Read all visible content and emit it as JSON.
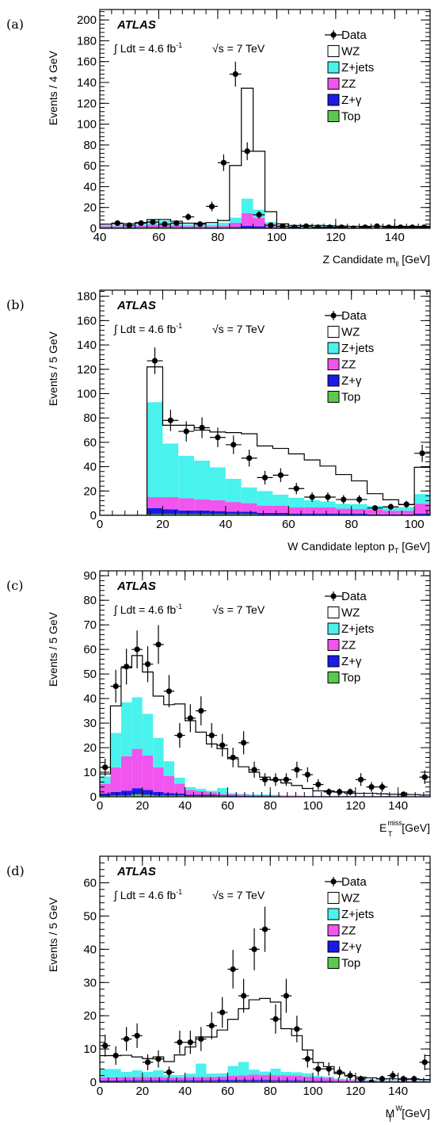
{
  "colors": {
    "wz": "#ffffff",
    "zjets": "#4af2ee",
    "zz": "#f055ee",
    "zgamma": "#1a1ae6",
    "top": "#5dc850",
    "data": "#000000"
  },
  "common": {
    "atlas": "ATLAS",
    "lumi": "∫ Ldt = 4.6 fb",
    "lumi_sup": "-1",
    "sqrts": "√s = 7 TeV",
    "legend": [
      "Data",
      "WZ",
      "Z+jets",
      "ZZ",
      "Z+γ",
      "Top"
    ]
  },
  "chart_data": [
    {
      "panel": "(a)",
      "type": "bar",
      "ylabel": "Events / 4 GeV",
      "xlabel_main": "Z Candidate m",
      "xlabel_sub": "ll",
      "xlabel_unit": " [GeV]",
      "xlim": [
        40,
        152
      ],
      "ylim": [
        0,
        210
      ],
      "xticks": [
        40,
        60,
        80,
        100,
        120,
        140
      ],
      "yticks": [
        0,
        20,
        40,
        60,
        80,
        100,
        120,
        140,
        160,
        180,
        200
      ],
      "bin_edges": [
        40,
        44,
        48,
        52,
        56,
        60,
        64,
        68,
        72,
        76,
        80,
        84,
        88,
        92,
        96,
        100,
        104,
        108,
        112,
        116,
        120,
        124,
        128,
        132,
        136,
        140,
        144,
        148,
        152
      ],
      "stack": {
        "top": [
          0.5,
          0.5,
          0.5,
          0.8,
          1,
          1,
          0.8,
          0.5,
          0.5,
          0.5,
          0.5,
          0.5,
          0.5,
          0.5,
          0.5,
          0.5,
          0.5,
          0.5,
          0.5,
          0.5,
          0.3,
          0.3,
          0.3,
          0.3,
          0.3,
          0.3,
          0.3,
          0.3
        ],
        "zgamma": [
          0.5,
          0.5,
          0.5,
          0.5,
          0.5,
          0.5,
          0.5,
          0.5,
          0.5,
          0.5,
          0.5,
          0.8,
          2,
          1.5,
          0.5,
          0.3,
          0.3,
          0.3,
          0.3,
          0.3,
          0.3,
          0.3,
          0.3,
          0.3,
          0.3,
          0.3,
          0.3,
          0.3
        ],
        "zz": [
          1,
          1,
          1,
          1.2,
          2,
          2,
          1.5,
          1,
          1,
          1,
          1.5,
          4,
          12,
          8,
          2,
          1,
          0.5,
          0.5,
          0.5,
          0.5,
          0.3,
          0.3,
          0.3,
          0.3,
          0.3,
          0.3,
          0.3,
          0.3
        ],
        "zjets": [
          1,
          1.5,
          1.5,
          2,
          4,
          4,
          3,
          2,
          2,
          2,
          3,
          5,
          14,
          8,
          3,
          1.5,
          1,
          1,
          1,
          0.7,
          0.7,
          0.5,
          0.5,
          0.5,
          0.5,
          0.5,
          0.5,
          0.5
        ],
        "wz": [
          1,
          1,
          1,
          1,
          1,
          1,
          1,
          1,
          1,
          1.5,
          2,
          50,
          106,
          56,
          10,
          1,
          0.5,
          0.5,
          0.5,
          0.5,
          0.5,
          0.5,
          0.5,
          0.5,
          0.5,
          0.5,
          0.5,
          0.5
        ]
      },
      "data": {
        "x": [
          46,
          50,
          54,
          58,
          62,
          66,
          70,
          74,
          78,
          82,
          86,
          90,
          94,
          98,
          102,
          106,
          110,
          114,
          118,
          122,
          126,
          130,
          134,
          138,
          142,
          146,
          150
        ],
        "y": [
          5,
          3,
          5,
          6,
          4,
          5,
          11,
          4,
          21,
          63,
          148,
          74,
          13,
          3,
          2,
          1,
          2,
          1,
          1,
          1,
          0,
          1,
          2,
          1,
          1,
          1,
          1
        ],
        "err": [
          2.2,
          1.7,
          2.2,
          2.4,
          2,
          2.2,
          3.3,
          2,
          4.6,
          8,
          12,
          8.6,
          3.6,
          1.7,
          1.4,
          1,
          1.4,
          1,
          1,
          1,
          0,
          1,
          1.4,
          1,
          1,
          1,
          1
        ]
      }
    },
    {
      "panel": "(b)",
      "type": "bar",
      "ylabel": "Events / 5 GeV",
      "xlabel_main": "W Candidate lepton p",
      "xlabel_sub": "T",
      "xlabel_unit": " [GeV]",
      "xlim": [
        0,
        105
      ],
      "ylim": [
        0,
        185
      ],
      "xticks": [
        0,
        20,
        40,
        60,
        80,
        100
      ],
      "yticks": [
        0,
        20,
        40,
        60,
        80,
        100,
        120,
        140,
        160,
        180
      ],
      "bin_edges": [
        0,
        5,
        10,
        15,
        20,
        25,
        30,
        35,
        40,
        45,
        50,
        55,
        60,
        65,
        70,
        75,
        80,
        85,
        90,
        95,
        100,
        105
      ],
      "stack": {
        "top": [
          0,
          0,
          0,
          1,
          1,
          1,
          1,
          1,
          1,
          1,
          0.5,
          0.5,
          0.5,
          0.5,
          0.5,
          0.5,
          0.5,
          0.3,
          0.3,
          0.3,
          0.5
        ],
        "zgamma": [
          0,
          0,
          0,
          5,
          4,
          3,
          3,
          2.5,
          2,
          2,
          1.5,
          1.5,
          1,
          1,
          1,
          1,
          0.8,
          0.5,
          0.5,
          0.5,
          1
        ],
        "zz": [
          0,
          0,
          0,
          9,
          10,
          10,
          9,
          9,
          8,
          7,
          6,
          6,
          5,
          5,
          5,
          4,
          4,
          4,
          3,
          3,
          8
        ],
        "zjets": [
          0,
          0,
          0,
          78,
          44,
          35,
          32,
          27,
          19,
          13,
          12,
          9,
          8,
          6,
          5,
          4,
          4,
          3,
          3,
          3,
          8
        ],
        "wz": [
          0,
          0,
          0,
          29,
          15,
          25,
          25,
          29,
          38,
          44,
          37,
          38,
          36,
          33,
          29,
          24,
          19,
          10,
          6,
          2,
          22
        ]
      },
      "data": {
        "x": [
          17.5,
          22.5,
          27.5,
          32.5,
          37.5,
          42.5,
          47.5,
          52.5,
          57.5,
          62.5,
          67.5,
          72.5,
          77.5,
          82.5,
          87.5,
          92.5,
          97.5,
          102.5
        ],
        "y": [
          127,
          78,
          69,
          72,
          64,
          58,
          47,
          31,
          33,
          22,
          15,
          15,
          13,
          13,
          6,
          7,
          9,
          51
        ],
        "err": [
          11,
          8.8,
          8.3,
          8.5,
          8,
          7.6,
          6.9,
          5.6,
          5.7,
          4.7,
          3.9,
          3.9,
          3.6,
          3.6,
          2.4,
          2.6,
          3,
          7.1
        ]
      }
    },
    {
      "panel": "(c)",
      "type": "bar",
      "ylabel": "Events / 5 GeV",
      "xlabel_main": "E",
      "xlabel_sub": "T",
      "xlabel_sup": "miss",
      "xlabel_unit": " [GeV]",
      "xlim": [
        0,
        155
      ],
      "ylim": [
        0,
        92
      ],
      "xticks": [
        0,
        20,
        40,
        60,
        80,
        100,
        120,
        140
      ],
      "yticks": [
        0,
        10,
        20,
        30,
        40,
        50,
        60,
        70,
        80,
        90
      ],
      "bin_edges": [
        0,
        5,
        10,
        15,
        20,
        25,
        30,
        35,
        40,
        45,
        50,
        55,
        60,
        65,
        70,
        75,
        80,
        85,
        90,
        95,
        100,
        105,
        110,
        115,
        120,
        125,
        130,
        135,
        140,
        145,
        150,
        155
      ],
      "stack": {
        "top": [
          0.3,
          0.5,
          0.5,
          1,
          0.8,
          0.5,
          0.5,
          0.5,
          0.3,
          0.3,
          0.3,
          0.3,
          0.2,
          0.2,
          0.2,
          0.2,
          0.2,
          0.1,
          0.1,
          0.1,
          0.1,
          0.1,
          0.1,
          0.1,
          0.1,
          0.1,
          0.1,
          0.1,
          0.1,
          0.1,
          0.1
        ],
        "zgamma": [
          1,
          1.5,
          2,
          2.5,
          2,
          1.5,
          1,
          0.8,
          0.5,
          0.5,
          0.5,
          0.3,
          0.3,
          0.2,
          0.2,
          0.2,
          0.1,
          0.1,
          0.1,
          0.1,
          0.1,
          0.1,
          0.1,
          0.1,
          0.1,
          0.1,
          0.1,
          0.1,
          0.1,
          0.1,
          0.1
        ],
        "zz": [
          4,
          10,
          14,
          16,
          14,
          10,
          7,
          4,
          2,
          1.5,
          1,
          0.5,
          0.5,
          0.5,
          0.3,
          0.3,
          0.2,
          0.2,
          0.2,
          0.1,
          0.1,
          0.1,
          0.1,
          0.1,
          0.1,
          0.1,
          0.1,
          0.1,
          0.1,
          0.1,
          0.1
        ],
        "zjets": [
          3,
          14,
          22,
          21,
          17,
          12,
          6,
          2.5,
          1.2,
          1,
          0.7,
          2.5,
          0.5,
          0.3,
          0.3,
          0.3,
          0.3,
          0.2,
          0.2,
          0.1,
          0.1,
          0.1,
          0.1,
          0.1,
          0.1,
          0.1,
          0.1,
          0.1,
          0.1,
          0.1,
          0.1
        ],
        "wz": [
          1,
          11,
          14,
          17,
          17,
          17,
          23,
          30,
          27,
          23,
          19,
          16,
          14,
          11,
          9,
          7,
          6,
          5,
          4,
          3,
          2,
          2,
          1.5,
          1,
          1,
          1,
          0.8,
          0.6,
          0.5,
          0.5,
          0.3
        ]
      },
      "data": {
        "x": [
          2.5,
          7.5,
          12.5,
          17.5,
          22.5,
          27.5,
          32.5,
          37.5,
          42.5,
          47.5,
          52.5,
          57.5,
          62.5,
          67.5,
          72.5,
          77.5,
          82.5,
          87.5,
          92.5,
          97.5,
          102.5,
          107.5,
          112.5,
          117.5,
          122.5,
          127.5,
          132.5,
          142.5,
          152.5
        ],
        "y": [
          12,
          45,
          53,
          60,
          54,
          62,
          43,
          25,
          32,
          35,
          25,
          21,
          16,
          22,
          11,
          7,
          7,
          7,
          11,
          9,
          5,
          2,
          2,
          2,
          7,
          4,
          4,
          1,
          8
        ],
        "err": [
          3.5,
          6.7,
          7.3,
          7.7,
          7.3,
          7.9,
          6.6,
          5,
          5.7,
          5.9,
          5,
          4.6,
          4,
          4.7,
          3.3,
          2.6,
          2.6,
          2.6,
          3.3,
          3,
          2.2,
          1.4,
          1.4,
          1.4,
          2.6,
          2,
          2,
          1,
          2.8
        ]
      }
    },
    {
      "panel": "(d)",
      "type": "bar",
      "ylabel": "Events / 5 GeV",
      "xlabel_main": "M",
      "xlabel_sub": "T",
      "xlabel_sup": "W",
      "xlabel_unit": " [GeV]",
      "xlim": [
        0,
        155
      ],
      "ylim": [
        0,
        68
      ],
      "xticks": [
        0,
        20,
        40,
        60,
        80,
        100,
        120,
        140
      ],
      "yticks": [
        0,
        10,
        20,
        30,
        40,
        50,
        60
      ],
      "bin_edges": [
        0,
        5,
        10,
        15,
        20,
        25,
        30,
        35,
        40,
        45,
        50,
        55,
        60,
        65,
        70,
        75,
        80,
        85,
        90,
        95,
        100,
        105,
        110,
        115,
        120,
        125,
        130,
        135,
        140,
        145,
        150,
        155
      ],
      "stack": {
        "top": [
          0.2,
          0.2,
          0.3,
          0.3,
          0.3,
          0.3,
          0.3,
          0.3,
          0.3,
          0.3,
          0.3,
          0.3,
          0.3,
          0.3,
          0.3,
          0.3,
          0.3,
          0.3,
          0.3,
          0.3,
          0.2,
          0.2,
          0.2,
          0.1,
          0.1,
          0.1,
          0.1,
          0.1,
          0.1,
          0.1,
          0.1
        ],
        "zgamma": [
          0.3,
          0.3,
          0.3,
          0.3,
          0.3,
          0.3,
          0.3,
          0.3,
          0.3,
          0.3,
          0.3,
          0.4,
          0.4,
          0.4,
          0.4,
          0.4,
          0.3,
          0.3,
          0.3,
          0.2,
          0.2,
          0.2,
          0.1,
          0.1,
          0.1,
          0.1,
          0.1,
          0.1,
          0.1,
          0.1,
          0.1
        ],
        "zz": [
          1,
          1,
          1,
          1,
          1,
          1,
          0.8,
          0.8,
          1,
          1,
          1,
          1,
          1.2,
          1.4,
          1.6,
          1.5,
          1.5,
          1.5,
          1.4,
          1.2,
          1,
          0.8,
          0.5,
          0.4,
          0.3,
          0.3,
          0.2,
          0.2,
          0.2,
          0.2,
          0.2
        ],
        "zjets": [
          2.5,
          2.5,
          1.5,
          2,
          1.5,
          2,
          0.8,
          0.8,
          1,
          4,
          1,
          1,
          3,
          4,
          1.5,
          1,
          2,
          1,
          1,
          1,
          0.5,
          0.5,
          0.3,
          0.3,
          0.3,
          0.3,
          0.2,
          0.2,
          0.2,
          0.2,
          0.2
        ],
        "wz": [
          4,
          4,
          5,
          4,
          4,
          4,
          4,
          6,
          8,
          8,
          11,
          13,
          14,
          16,
          21,
          22,
          20,
          13,
          11,
          7,
          4,
          3,
          1.5,
          1,
          0.7,
          0.5,
          0.4,
          0.4,
          0.3,
          0.3,
          0.2
        ]
      },
      "data": {
        "x": [
          2.5,
          7.5,
          12.5,
          17.5,
          22.5,
          27.5,
          32.5,
          37.5,
          42.5,
          47.5,
          52.5,
          57.5,
          62.5,
          67.5,
          72.5,
          77.5,
          82.5,
          87.5,
          92.5,
          97.5,
          102.5,
          107.5,
          112.5,
          117.5,
          122.5,
          127.5,
          132.5,
          137.5,
          142.5,
          147.5,
          152.5
        ],
        "y": [
          11,
          8,
          13,
          14,
          6,
          7,
          3,
          12,
          12,
          13,
          17,
          21,
          34,
          26,
          40,
          46,
          19,
          26,
          16,
          7,
          4,
          4,
          3,
          2,
          1,
          0,
          1,
          2,
          1,
          1,
          6
        ],
        "err": [
          3.3,
          2.8,
          3.6,
          3.7,
          2.4,
          2.6,
          1.7,
          3.5,
          3.5,
          3.6,
          4.1,
          4.6,
          5.8,
          5.1,
          6.3,
          6.8,
          4.4,
          5.1,
          4,
          2.6,
          2,
          2,
          1.7,
          1.4,
          1,
          0,
          1,
          1.4,
          1,
          1,
          2.4
        ]
      }
    }
  ]
}
